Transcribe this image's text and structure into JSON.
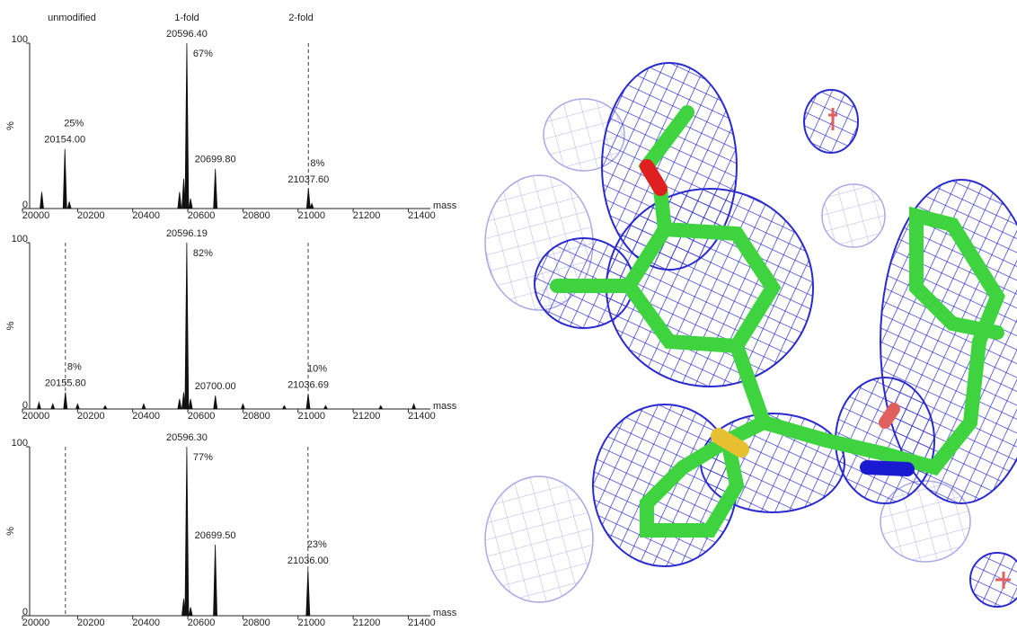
{
  "chart_data": [
    {
      "type": "spectrum",
      "headers": [
        "unmodified",
        "1-fold",
        "2-fold"
      ],
      "x": [
        20070,
        20154.0,
        20170,
        20570,
        20585,
        20596.4,
        20610,
        20699.8,
        21037.6,
        21050
      ],
      "values": [
        10,
        36,
        4,
        10,
        18,
        100,
        6,
        24,
        12,
        3
      ],
      "mass_labels": [
        null,
        "20154.00",
        null,
        null,
        null,
        "20596.40",
        null,
        "20699.80",
        "21037.60",
        null
      ],
      "percent_labels": [
        null,
        "25%",
        null,
        null,
        null,
        "67%",
        null,
        null,
        "8%",
        null
      ],
      "reference_lines": [
        21037.6
      ],
      "xlim": [
        20000,
        21480
      ],
      "xticks": [
        20000,
        20200,
        20400,
        20600,
        20800,
        21000,
        21200,
        21400
      ],
      "ylim": [
        0,
        100
      ],
      "yticks": [
        0,
        100
      ],
      "ylabel": "%",
      "xlabel": "mass",
      "color": "#111111"
    },
    {
      "type": "spectrum",
      "x": [
        20060,
        20110,
        20155.8,
        20200,
        20300,
        20440,
        20570,
        20585,
        20596.19,
        20610,
        20700.0,
        20800,
        20950,
        21036.69,
        21100,
        21300,
        21420
      ],
      "values": [
        4,
        3,
        10,
        3,
        2,
        3,
        6,
        10,
        100,
        6,
        8,
        3,
        2,
        9,
        2,
        2,
        3
      ],
      "mass_labels": [
        null,
        null,
        "20155.80",
        null,
        null,
        null,
        null,
        null,
        "20596.19",
        null,
        "20700.00",
        null,
        null,
        "21036.69",
        null,
        null,
        null
      ],
      "percent_labels": [
        null,
        null,
        "8%",
        null,
        null,
        null,
        null,
        null,
        "82%",
        null,
        null,
        null,
        null,
        "10%",
        null,
        null,
        null
      ],
      "reference_lines": [
        20155.8,
        21036.69
      ],
      "xlim": [
        20000,
        21480
      ],
      "xticks": [
        20000,
        20200,
        20400,
        20600,
        20800,
        21000,
        21200,
        21400
      ],
      "ylim": [
        0,
        100
      ],
      "yticks": [
        0,
        100
      ],
      "ylabel": "%",
      "xlabel": "mass",
      "color": "#111111"
    },
    {
      "type": "spectrum",
      "x": [
        20585,
        20596.3,
        20610,
        20699.5,
        21036.0
      ],
      "values": [
        10,
        100,
        5,
        42,
        27
      ],
      "mass_labels": [
        null,
        "20596.30",
        null,
        "20699.50",
        "21036.00"
      ],
      "percent_labels": [
        null,
        "77%",
        null,
        null,
        "23%"
      ],
      "reference_lines": [
        20155.8,
        21036.0
      ],
      "xlim": [
        20000,
        21480
      ],
      "xticks": [
        20000,
        20200,
        20400,
        20600,
        20800,
        21000,
        21200,
        21400
      ],
      "ylim": [
        0,
        100
      ],
      "yticks": [
        0,
        100
      ],
      "ylabel": "%",
      "xlabel": "mass",
      "color": "#111111"
    }
  ]
}
